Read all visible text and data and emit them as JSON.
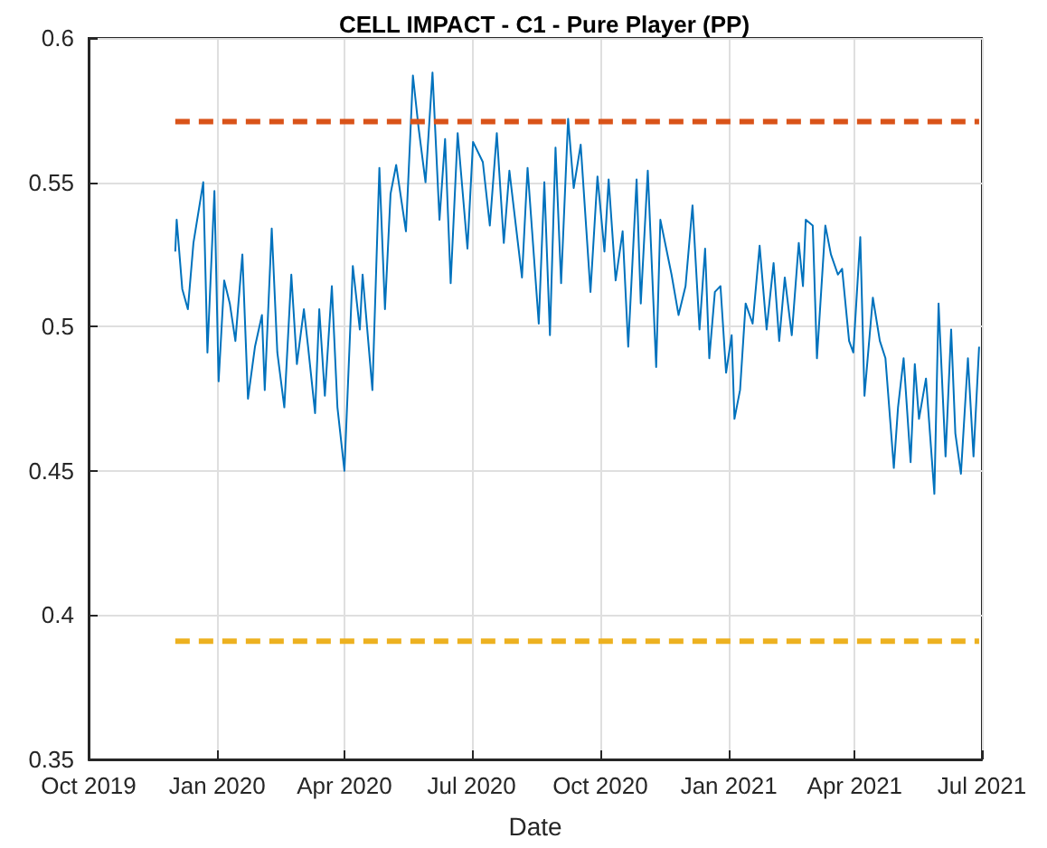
{
  "chart_data": {
    "type": "line",
    "title": "CELL IMPACT - C1 - Pure Player (PP)",
    "xlabel": "Date",
    "x": [
      "2019-12-02",
      "2019-12-03",
      "2019-12-07",
      "2019-12-11",
      "2019-12-15",
      "2019-12-22",
      "2019-12-25",
      "2019-12-30",
      "2020-01-02",
      "2020-01-06",
      "2020-01-10",
      "2020-01-14",
      "2020-01-19",
      "2020-01-23",
      "2020-01-28",
      "2020-02-02",
      "2020-02-04",
      "2020-02-09",
      "2020-02-13",
      "2020-02-18",
      "2020-02-23",
      "2020-02-27",
      "2020-03-03",
      "2020-03-06",
      "2020-03-11",
      "2020-03-14",
      "2020-03-18",
      "2020-03-23",
      "2020-03-27",
      "2020-04-01",
      "2020-04-07",
      "2020-04-12",
      "2020-04-14",
      "2020-04-21",
      "2020-04-26",
      "2020-04-30",
      "2020-05-04",
      "2020-05-08",
      "2020-05-15",
      "2020-05-18",
      "2020-05-20",
      "2020-05-24",
      "2020-05-29",
      "2020-06-03",
      "2020-06-08",
      "2020-06-12",
      "2020-06-16",
      "2020-06-21",
      "2020-06-28",
      "2020-07-02",
      "2020-07-09",
      "2020-07-14",
      "2020-07-19",
      "2020-07-24",
      "2020-07-28",
      "2020-08-06",
      "2020-08-10",
      "2020-08-18",
      "2020-08-22",
      "2020-08-26",
      "2020-08-30",
      "2020-09-03",
      "2020-09-08",
      "2020-09-12",
      "2020-09-17",
      "2020-09-24",
      "2020-09-29",
      "2020-10-04",
      "2020-10-07",
      "2020-10-12",
      "2020-10-17",
      "2020-10-21",
      "2020-10-27",
      "2020-10-30",
      "2020-11-04",
      "2020-11-10",
      "2020-11-13",
      "2020-11-21",
      "2020-11-26",
      "2020-12-01",
      "2020-12-06",
      "2020-12-11",
      "2020-12-15",
      "2020-12-18",
      "2020-12-22",
      "2020-12-26",
      "2020-12-30",
      "2021-01-03",
      "2021-01-05",
      "2021-01-09",
      "2021-01-13",
      "2021-01-18",
      "2021-01-23",
      "2021-01-28",
      "2021-02-02",
      "2021-02-06",
      "2021-02-10",
      "2021-02-15",
      "2021-02-20",
      "2021-02-23",
      "2021-02-25",
      "2021-03-02",
      "2021-03-05",
      "2021-03-11",
      "2021-03-15",
      "2021-03-20",
      "2021-03-23",
      "2021-03-28",
      "2021-03-31",
      "2021-04-05",
      "2021-04-08",
      "2021-04-14",
      "2021-04-19",
      "2021-04-23",
      "2021-04-29",
      "2021-05-02",
      "2021-05-06",
      "2021-05-11",
      "2021-05-14",
      "2021-05-17",
      "2021-05-22",
      "2021-05-28",
      "2021-05-31",
      "2021-06-05",
      "2021-06-09",
      "2021-06-12",
      "2021-06-16",
      "2021-06-21",
      "2021-06-25",
      "2021-06-29"
    ],
    "series": [
      {
        "color": "#0072bd",
        "values": [
          0.526,
          0.537,
          0.513,
          0.506,
          0.529,
          0.55,
          0.491,
          0.547,
          0.481,
          0.516,
          0.508,
          0.495,
          0.525,
          0.475,
          0.493,
          0.504,
          0.478,
          0.534,
          0.491,
          0.472,
          0.518,
          0.487,
          0.506,
          0.493,
          0.47,
          0.506,
          0.476,
          0.514,
          0.472,
          0.45,
          0.521,
          0.499,
          0.518,
          0.478,
          0.555,
          0.506,
          0.546,
          0.556,
          0.533,
          0.565,
          0.587,
          0.569,
          0.55,
          0.588,
          0.537,
          0.565,
          0.515,
          0.567,
          0.527,
          0.564,
          0.557,
          0.535,
          0.567,
          0.529,
          0.554,
          0.517,
          0.555,
          0.501,
          0.55,
          0.497,
          0.562,
          0.515,
          0.572,
          0.548,
          0.563,
          0.512,
          0.552,
          0.526,
          0.551,
          0.516,
          0.533,
          0.493,
          0.551,
          0.508,
          0.554,
          0.486,
          0.537,
          0.518,
          0.504,
          0.514,
          0.542,
          0.499,
          0.527,
          0.489,
          0.512,
          0.514,
          0.484,
          0.497,
          0.468,
          0.478,
          0.508,
          0.501,
          0.528,
          0.499,
          0.522,
          0.495,
          0.517,
          0.497,
          0.529,
          0.514,
          0.537,
          0.535,
          0.489,
          0.535,
          0.525,
          0.518,
          0.52,
          0.495,
          0.491,
          0.531,
          0.476,
          0.51,
          0.495,
          0.489,
          0.451,
          0.472,
          0.489,
          0.453,
          0.487,
          0.468,
          0.482,
          0.442,
          0.508,
          0.455,
          0.499,
          0.463,
          0.449,
          0.489,
          0.455,
          0.493
        ]
      }
    ],
    "ref_lines": [
      {
        "axis": "y",
        "value": 0.571,
        "color": "#d95319",
        "line_style": "dashed"
      },
      {
        "axis": "y",
        "value": 0.391,
        "color": "#edb120",
        "line_style": "dashed"
      }
    ],
    "xlim": [
      "2019-10-01",
      "2021-07-01"
    ],
    "xticks": [
      {
        "value": "2019-10-01",
        "label": "Oct 2019"
      },
      {
        "value": "2020-01-01",
        "label": "Jan 2020"
      },
      {
        "value": "2020-04-01",
        "label": "Apr 2020"
      },
      {
        "value": "2020-07-01",
        "label": "Jul 2020"
      },
      {
        "value": "2020-10-01",
        "label": "Oct 2020"
      },
      {
        "value": "2021-01-01",
        "label": "Jan 2021"
      },
      {
        "value": "2021-04-01",
        "label": "Apr 2021"
      },
      {
        "value": "2021-07-01",
        "label": "Jul 2021"
      }
    ],
    "ylim": [
      0.35,
      0.6
    ],
    "yticks": [
      0.35,
      0.4,
      0.45,
      0.5,
      0.55,
      0.6
    ],
    "grid": true,
    "marker": "none",
    "line_style": "solid"
  }
}
